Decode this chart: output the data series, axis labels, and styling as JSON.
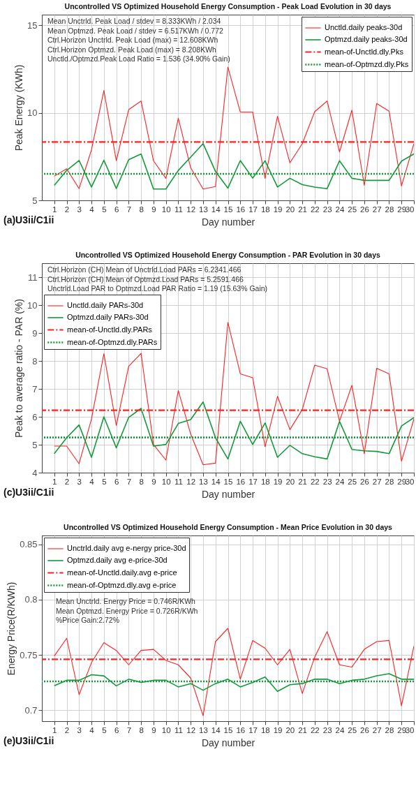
{
  "chart_data": [
    {
      "type": "line",
      "title": "Uncontrolled VS Optimized Household Energy Consumption - Peak Load Evolution in 30 days",
      "xlabel": "Day number",
      "ylabel": "Peak Energy (KWh)",
      "x": [
        1,
        2,
        3,
        4,
        5,
        6,
        7,
        8,
        9,
        10,
        11,
        12,
        13,
        14,
        15,
        16,
        17,
        18,
        19,
        20,
        21,
        22,
        23,
        24,
        25,
        26,
        27,
        28,
        29,
        30
      ],
      "xlim": [
        0,
        30
      ],
      "xticks": [
        1,
        2,
        3,
        4,
        5,
        6,
        7,
        8,
        9,
        10,
        11,
        12,
        13,
        14,
        15,
        16,
        17,
        18,
        19,
        20,
        21,
        22,
        23,
        24,
        25,
        26,
        27,
        28,
        29,
        30
      ],
      "ylim": [
        5,
        15.6
      ],
      "yticks": [
        5,
        10,
        15
      ],
      "grid": true,
      "legend": "top right",
      "series": [
        {
          "name": "Unctld.daily peaks-30d",
          "color": "#ff2020",
          "values": [
            6.38,
            6.8,
            5.67,
            7.88,
            11.27,
            7.27,
            10.18,
            10.67,
            7.26,
            6.26,
            9.69,
            6.86,
            5.65,
            5.79,
            12.61,
            10.04,
            10.04,
            6.26,
            9.8,
            7.14,
            8.24,
            10.06,
            10.67,
            7.76,
            10.15,
            5.86,
            10.53,
            10.09,
            5.82,
            8.24
          ]
        },
        {
          "name": "Optmzd.daily peaks-30d",
          "color": "#139a3a",
          "values": [
            5.86,
            6.71,
            7.28,
            5.76,
            7.29,
            5.68,
            7.32,
            7.65,
            5.65,
            5.65,
            6.71,
            7.47,
            8.24,
            6.65,
            5.7,
            7.27,
            6.27,
            7.26,
            5.76,
            6.26,
            5.9,
            5.76,
            5.67,
            7.26,
            6.26,
            6.14,
            6.14,
            6.14,
            7.24,
            7.65
          ]
        }
      ],
      "ref_lines": [
        {
          "axis": "y",
          "value": 8.333,
          "label": "mean-of-Unctld.dly.Pks",
          "color": "#ff2020",
          "line_style": "dashed"
        },
        {
          "axis": "y",
          "value": 6.517,
          "label": "mean-of-Optmzd.dly.Pks",
          "color": "#139a3a",
          "line_style": "dotted"
        }
      ],
      "annotations": [
        "Mean Unctrld. Peak Load / stdev = 8.333KWh / 2.034",
        "Mean Optmzd. Peak Load / stdev = 6.517KWh / 0.772",
        "Ctrl.Horizon Unctrld. Peak Load (max) = 12.608KWh",
        "Ctrl.Horizon Optmzd. Peak Load (max) = 8.208KWh",
        "Unctld./Optmzd.Peak Load Ratio = 1.536 (34.90% Gain)",
        "(a)U3ii/C1ii"
      ]
    },
    {
      "type": "line",
      "title": "Uncontrolled VS Optimized Household Energy Consumption - PAR Evolution in 30 days",
      "xlabel": "Day number",
      "ylabel": "Peak to average ratio - PAR  (%)",
      "x": [
        1,
        2,
        3,
        4,
        5,
        6,
        7,
        8,
        9,
        10,
        11,
        12,
        13,
        14,
        15,
        16,
        17,
        18,
        19,
        20,
        21,
        22,
        23,
        24,
        25,
        26,
        27,
        28,
        29,
        30
      ],
      "xlim": [
        0,
        30
      ],
      "xticks": [
        1,
        2,
        3,
        4,
        5,
        6,
        7,
        8,
        9,
        10,
        11,
        12,
        13,
        14,
        15,
        16,
        17,
        18,
        19,
        20,
        21,
        22,
        23,
        24,
        25,
        26,
        27,
        28,
        29,
        30
      ],
      "ylim": [
        4,
        11.5
      ],
      "yticks": [
        4,
        5,
        6,
        7,
        8,
        9,
        10,
        11
      ],
      "grid": true,
      "legend": "top left",
      "series": [
        {
          "name": "Unctld.daily PARs-30d",
          "color": "#ff2020",
          "values": [
            4.95,
            4.95,
            4.32,
            5.92,
            8.26,
            5.69,
            7.81,
            8.27,
            5.01,
            4.45,
            6.94,
            5.38,
            4.28,
            4.34,
            9.38,
            7.54,
            7.4,
            4.93,
            6.73,
            5.54,
            6.26,
            7.85,
            7.72,
            5.84,
            7.13,
            4.68,
            7.74,
            7.54,
            4.41,
            5.92
          ]
        },
        {
          "name": "Optmzd.daily PARs-30d",
          "color": "#139a3a",
          "values": [
            4.68,
            5.25,
            5.71,
            4.55,
            6.0,
            4.89,
            5.98,
            6.3,
            4.95,
            5.01,
            5.76,
            5.9,
            6.53,
            5.25,
            4.49,
            5.84,
            5.01,
            5.78,
            4.55,
            4.98,
            4.68,
            4.57,
            4.49,
            5.84,
            4.83,
            4.78,
            4.76,
            4.68,
            5.67,
            5.97
          ]
        }
      ],
      "ref_lines": [
        {
          "axis": "y",
          "value": 6.234,
          "label": "mean-of-Unctld.dly.PARs",
          "color": "#ff2020",
          "line_style": "dashed"
        },
        {
          "axis": "y",
          "value": 5.259,
          "label": "mean-of-Optmzd.dly.PARs",
          "color": "#139a3a",
          "line_style": "dotted"
        }
      ],
      "annotations": [
        "Ctrl.Horizon (CH) Mean of Unctrld.Load PARs = 6.2341.466",
        "Ctrl.Horizon (CH) Mean of Optmzd.Load PARs = 5.2591.466",
        "Unctrld.Load PAR to Optmzd.Load PAR Ratio = 1.19 (15.63% Gain)",
        "(c)U3ii/C1ii"
      ]
    },
    {
      "type": "line",
      "title": "Uncontrolled VS Optimized Household Energy Consumption - Mean Price Evolution in 30 days",
      "xlabel": "Day number",
      "ylabel": "Energy Price(R/KWh)",
      "x": [
        1,
        2,
        3,
        4,
        5,
        6,
        7,
        8,
        9,
        10,
        11,
        12,
        13,
        14,
        15,
        16,
        17,
        18,
        19,
        20,
        21,
        22,
        23,
        24,
        25,
        26,
        27,
        28,
        29,
        30
      ],
      "xlim": [
        0,
        30
      ],
      "xticks": [
        1,
        2,
        3,
        4,
        5,
        6,
        7,
        8,
        9,
        10,
        11,
        12,
        13,
        14,
        15,
        16,
        17,
        18,
        19,
        20,
        21,
        22,
        23,
        24,
        25,
        26,
        27,
        28,
        29,
        30
      ],
      "ylim": [
        0.69,
        0.858
      ],
      "yticks": [
        0.7,
        0.75,
        0.8,
        0.85
      ],
      "grid": true,
      "legend": "top left",
      "series": [
        {
          "name": "Unctrld.daily avg e-nergy price-30d",
          "color": "#ff2020",
          "values": [
            0.749,
            0.765,
            0.714,
            0.743,
            0.761,
            0.754,
            0.741,
            0.754,
            0.755,
            0.745,
            0.741,
            0.729,
            0.695,
            0.762,
            0.774,
            0.728,
            0.763,
            0.756,
            0.741,
            0.755,
            0.715,
            0.748,
            0.771,
            0.741,
            0.739,
            0.755,
            0.762,
            0.763,
            0.704,
            0.758
          ]
        },
        {
          "name": "Optmzd.daily avg e-price-30d",
          "color": "#139a3a",
          "values": [
            0.722,
            0.727,
            0.727,
            0.732,
            0.731,
            0.722,
            0.728,
            0.725,
            0.727,
            0.727,
            0.721,
            0.724,
            0.718,
            0.724,
            0.728,
            0.721,
            0.725,
            0.73,
            0.717,
            0.723,
            0.724,
            0.728,
            0.728,
            0.724,
            0.727,
            0.728,
            0.731,
            0.733,
            0.728,
            0.728
          ]
        }
      ],
      "ref_lines": [
        {
          "axis": "y",
          "value": 0.746,
          "label": "mean-of-Unctld.daily.avg e-price",
          "color": "#ff2020",
          "line_style": "dashed"
        },
        {
          "axis": "y",
          "value": 0.726,
          "label": "mean-of-Optmzd.dly.avg e-price",
          "color": "#139a3a",
          "line_style": "dotted"
        }
      ],
      "annotations": [
        "Mean Unctrld. Energy Price = 0.746R/KWh",
        "Mean Optmzd. Energy Price = 0.726R/KWh",
        "%Price Gain:2.72%",
        "(e)U3ii/C1ii"
      ]
    }
  ]
}
